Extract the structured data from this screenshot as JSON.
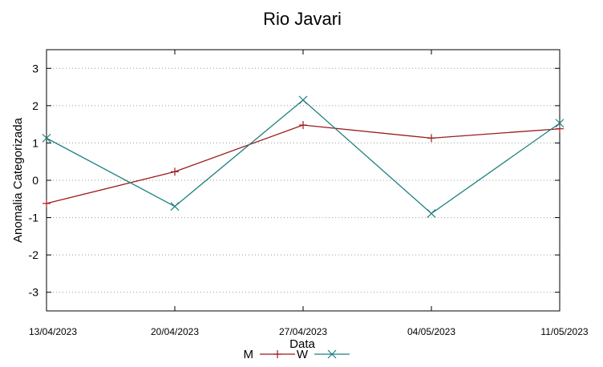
{
  "chart_data": {
    "type": "line",
    "title": "Rio Javari",
    "xlabel": "Data",
    "ylabel": "Anomalia Categorizada",
    "categories": [
      "13/04/2023",
      "20/04/2023",
      "27/04/2023",
      "04/05/2023",
      "11/05/2023"
    ],
    "ylim": [
      -3.5,
      3.5
    ],
    "yticks": [
      "3",
      "2",
      "1",
      "0",
      "-1",
      "-2",
      "-3"
    ],
    "grid": "horizontal-dotted",
    "legend_position": "bottom-center",
    "series": [
      {
        "name": "M",
        "marker": "+",
        "color": "#9b1b1b",
        "values": [
          -0.62,
          0.23,
          1.48,
          1.13,
          1.38
        ]
      },
      {
        "name": "W",
        "marker": "x",
        "color": "#1f8080",
        "values": [
          1.13,
          -0.7,
          2.15,
          -0.89,
          1.53
        ]
      }
    ]
  }
}
